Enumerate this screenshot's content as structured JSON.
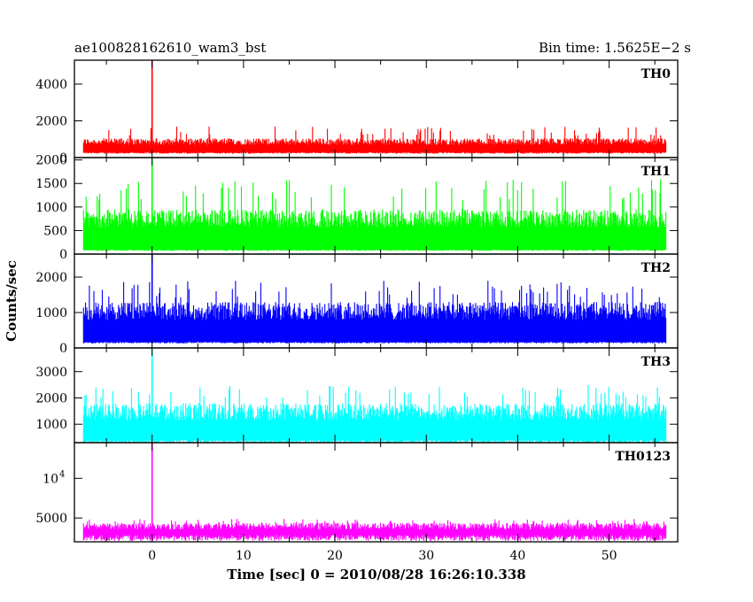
{
  "header": {
    "left_title": "ae100828162610_wam3_bst",
    "right_title": "Bin time: 1.5625E−2 s"
  },
  "chart_data": {
    "type": "line",
    "xlabel": "Time [sec] 0 = 2010/08/28 16:26:10.338",
    "ylabel": "Counts/sec",
    "xlim": [
      -8.5,
      57.5
    ],
    "data_range": [
      -7.5,
      56.2
    ],
    "x_ticks": [
      0,
      10,
      20,
      30,
      40,
      50
    ],
    "burst_time": 0.0,
    "panels": [
      {
        "name": "TH0",
        "color": "#ff0000",
        "ylim": [
          0,
          5300
        ],
        "ticks": [
          {
            "v": 0,
            "label": "0"
          },
          {
            "v": 2000,
            "label": "2000"
          },
          {
            "v": 4000,
            "label": "4000"
          }
        ],
        "level": [
          250,
          1050
        ],
        "spikes": [
          1200,
          1700
        ],
        "burst_peak": 5300
      },
      {
        "name": "TH1",
        "color": "#00ff00",
        "ylim": [
          0,
          2050
        ],
        "ticks": [
          {
            "v": 0,
            "label": "0"
          },
          {
            "v": 500,
            "label": "500"
          },
          {
            "v": 1000,
            "label": "1000"
          },
          {
            "v": 1500,
            "label": "1500"
          },
          {
            "v": 2000,
            "label": "2000"
          }
        ],
        "level": [
          80,
          950
        ],
        "spikes": [
          1150,
          1600
        ],
        "burst_peak": 2050
      },
      {
        "name": "TH2",
        "color": "#0000ff",
        "ylim": [
          0,
          2650
        ],
        "ticks": [
          {
            "v": 0,
            "label": "0"
          },
          {
            "v": 1000,
            "label": "1000"
          },
          {
            "v": 2000,
            "label": "2000"
          }
        ],
        "level": [
          150,
          1300
        ],
        "spikes": [
          1400,
          1900
        ],
        "burst_peak": 2650
      },
      {
        "name": "TH3",
        "color": "#00ffff",
        "ylim": [
          300,
          3900
        ],
        "ticks": [
          {
            "v": 1000,
            "label": "1000"
          },
          {
            "v": 2000,
            "label": "2000"
          },
          {
            "v": 3000,
            "label": "3000"
          }
        ],
        "level": [
          350,
          1800
        ],
        "spikes": [
          2000,
          2500
        ],
        "burst_peak": 3900
      },
      {
        "name": "TH0123",
        "color": "#ff00ff",
        "ylim": [
          2000,
          14500
        ],
        "ticks": [
          {
            "v": 5000,
            "label": "5000"
          },
          {
            "v": 10000,
            "label": "10",
            "sup": "4"
          }
        ],
        "level": [
          2500,
          4400
        ],
        "spikes": [
          4500,
          4900
        ],
        "burst_peak": 14500
      }
    ]
  }
}
